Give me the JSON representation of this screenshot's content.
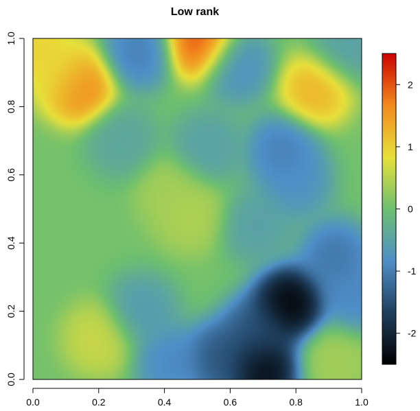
{
  "chart_data": {
    "type": "heatmap",
    "title": "Low rank",
    "xlabel": "",
    "ylabel": "",
    "xlim": [
      0,
      1
    ],
    "ylim": [
      0,
      1
    ],
    "x_ticks": [
      "0.0",
      "0.2",
      "0.4",
      "0.6",
      "0.8",
      "1.0"
    ],
    "x_tick_values": [
      0,
      0.2,
      0.4,
      0.6,
      0.8,
      1.0
    ],
    "y_ticks": [
      "0.0",
      "0.2",
      "0.4",
      "0.6",
      "0.8",
      "1.0"
    ],
    "y_tick_values": [
      0,
      0.2,
      0.4,
      0.6,
      0.8,
      1.0
    ],
    "colorbar": {
      "range": [
        -2.5,
        2.5
      ],
      "ticks": [
        "-2",
        "-1",
        "0",
        "1",
        "2"
      ],
      "tick_values": [
        -2,
        -1,
        0,
        1,
        2
      ],
      "colors": [
        "#000000",
        "#1f3f5e",
        "#4f8fc8",
        "#6dbf6f",
        "#e8e03a",
        "#f28a1e",
        "#cc0000"
      ]
    },
    "background_value": 0.05,
    "features": [
      {
        "x": 0.02,
        "y": 0.96,
        "value": 1.1
      },
      {
        "x": 0.14,
        "y": 0.86,
        "value": 1.9
      },
      {
        "x": 0.08,
        "y": 0.9,
        "value": 0.8
      },
      {
        "x": 0.51,
        "y": 0.99,
        "value": 2.2
      },
      {
        "x": 0.86,
        "y": 0.85,
        "value": 1.4
      },
      {
        "x": 0.32,
        "y": 0.96,
        "value": -1.1
      },
      {
        "x": 0.62,
        "y": 0.92,
        "value": -0.9
      },
      {
        "x": 0.95,
        "y": 0.97,
        "value": -0.6
      },
      {
        "x": 0.27,
        "y": 0.7,
        "value": -0.5
      },
      {
        "x": 0.53,
        "y": 0.68,
        "value": -0.6
      },
      {
        "x": 0.76,
        "y": 0.67,
        "value": -1.1
      },
      {
        "x": 0.8,
        "y": 0.58,
        "value": -0.9
      },
      {
        "x": 0.92,
        "y": 0.36,
        "value": -1.2
      },
      {
        "x": 0.98,
        "y": 0.24,
        "value": -1.0
      },
      {
        "x": 0.68,
        "y": 0.45,
        "value": -0.6
      },
      {
        "x": 0.48,
        "y": 0.48,
        "value": 0.5
      },
      {
        "x": 0.42,
        "y": 0.55,
        "value": 0.4
      },
      {
        "x": 0.2,
        "y": 0.12,
        "value": 0.7
      },
      {
        "x": 0.33,
        "y": 0.2,
        "value": -0.7
      },
      {
        "x": 0.42,
        "y": 0.05,
        "value": -1.0
      },
      {
        "x": 0.78,
        "y": 0.22,
        "value": -2.7
      },
      {
        "x": 0.68,
        "y": 0.14,
        "value": -1.6
      },
      {
        "x": 0.7,
        "y": 0.03,
        "value": -2.6
      },
      {
        "x": 0.57,
        "y": 0.06,
        "value": -1.6
      },
      {
        "x": 0.92,
        "y": 0.06,
        "value": 0.4
      }
    ]
  }
}
